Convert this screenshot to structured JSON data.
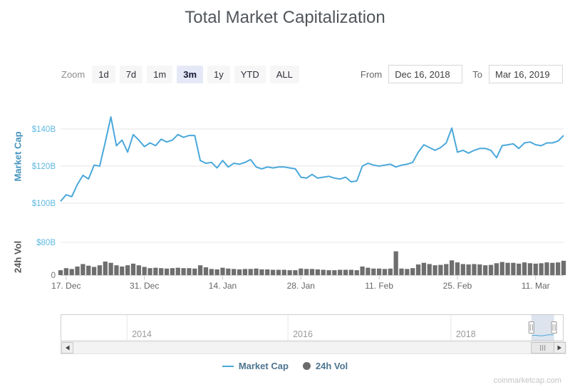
{
  "title": "Total Market Capitalization",
  "toolbar": {
    "zoom_label": "Zoom",
    "zoom_options": [
      "1d",
      "7d",
      "1m",
      "3m",
      "1y",
      "YTD",
      "ALL"
    ],
    "zoom_selected": "3m",
    "from_label": "From",
    "from_value": "Dec 16, 2018",
    "to_label": "To",
    "to_value": "Mar 16, 2019"
  },
  "legend": {
    "text_color": "#4d7590",
    "items": [
      {
        "label": "Market Cap",
        "marker": "line",
        "color": "#4aa8db"
      },
      {
        "label": "24h Vol",
        "marker": "circle",
        "color": "#6b6b6b"
      }
    ]
  },
  "watermark": "coinmarketcap.com",
  "chart_data": {
    "type": "line",
    "title": "Total Market Capitalization",
    "grid": true,
    "x": {
      "start": "Dec 16, 2018",
      "end": "Mar 16, 2019",
      "unit": "day",
      "ticks": [
        {
          "day": 1,
          "label": "17. Dec"
        },
        {
          "day": 15,
          "label": "31. Dec"
        },
        {
          "day": 29,
          "label": "14. Jan"
        },
        {
          "day": 43,
          "label": "28. Jan"
        },
        {
          "day": 57,
          "label": "11. Feb"
        },
        {
          "day": 71,
          "label": "25. Feb"
        },
        {
          "day": 85,
          "label": "11. Mar"
        }
      ]
    },
    "series": [
      {
        "name": "Market Cap",
        "type": "line",
        "color": "#4aa8db",
        "axis": {
          "title": "Market Cap",
          "title_color": "#4492bd",
          "tick_color": "#5db9e2",
          "unit": "$B",
          "range": [
            95,
            150
          ],
          "ticks": [
            {
              "value": 100,
              "label": "$100B"
            },
            {
              "value": 120,
              "label": "$120B"
            },
            {
              "value": 140,
              "label": "$140B"
            }
          ]
        },
        "values": [
          101,
          104.5,
          103.5,
          110,
          115,
          113,
          120.5,
          120,
          133,
          146.5,
          131,
          134,
          127.5,
          137,
          134,
          130.5,
          132.5,
          131,
          134.5,
          133,
          134,
          137,
          135.5,
          136.5,
          136.5,
          123,
          121.5,
          122,
          119,
          123,
          119.5,
          121.5,
          121,
          122,
          123.5,
          119.5,
          118.5,
          119.5,
          119,
          119.5,
          119.5,
          119,
          118.5,
          114,
          113.5,
          115.5,
          113.5,
          114,
          114.5,
          113.5,
          113,
          114,
          111.5,
          112,
          120,
          121.5,
          120.5,
          120,
          120.5,
          121,
          119.5,
          120.5,
          121,
          122,
          127.5,
          131.5,
          130,
          128.5,
          130,
          132.5,
          140.5,
          127.5,
          128.5,
          127,
          128.5,
          129.5,
          129.5,
          128.5,
          124.5,
          131,
          131.5,
          132,
          129.5,
          132.5,
          133,
          131.5,
          131,
          132.5,
          132.5,
          133.5,
          136.5
        ]
      },
      {
        "name": "24h Vol",
        "type": "column",
        "color": "#6e6e6e",
        "axis": {
          "title": "24h Vol",
          "title_color": "#555555",
          "tick_color": "#5db9e2",
          "zero_tick_color": "#707070",
          "unit": "$B",
          "range": [
            0,
            80
          ],
          "ticks": [
            {
              "value": 0,
              "label": "0"
            },
            {
              "value": 80,
              "label": "$80B"
            }
          ]
        },
        "values": [
          12,
          17,
          15,
          21,
          27,
          23,
          20,
          24,
          33,
          30,
          24,
          21,
          24,
          28,
          24,
          20,
          17,
          18,
          17,
          16,
          17,
          18,
          17,
          17,
          16,
          24,
          19,
          15,
          14,
          18,
          16,
          15,
          14,
          15,
          15,
          16,
          14,
          14,
          13,
          13,
          13,
          12,
          12,
          16,
          15,
          15,
          14,
          13,
          12,
          12,
          13,
          13,
          13,
          12,
          21,
          18,
          16,
          16,
          15,
          16,
          58,
          16,
          15,
          17,
          26,
          30,
          27,
          24,
          25,
          27,
          36,
          31,
          27,
          26,
          27,
          26,
          24,
          25,
          29,
          32,
          30,
          30,
          28,
          31,
          29,
          28,
          29,
          31,
          30,
          31,
          35
        ]
      }
    ],
    "navigator": {
      "years": [
        {
          "pos": 0.132,
          "label": "2014"
        },
        {
          "pos": 0.452,
          "label": "2016"
        },
        {
          "pos": 0.776,
          "label": "2018"
        }
      ],
      "selection": {
        "from": 0.936,
        "to": 0.981
      }
    }
  }
}
